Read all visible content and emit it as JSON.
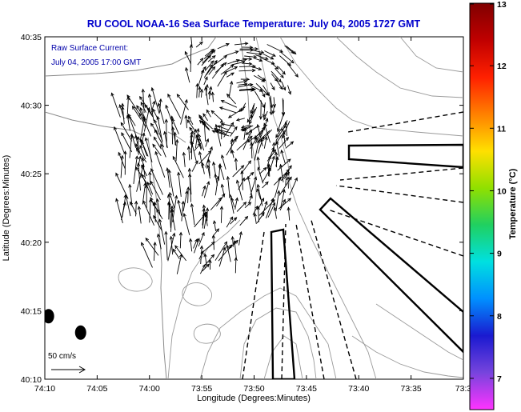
{
  "chart_data": {
    "type": "map",
    "title": "RU COOL  NOAA-16  Sea Surface Temperature:  July 04, 2005 1727 GMT",
    "xlabel": "Longitude (Degrees:Minutes)",
    "ylabel": "Latitude (Degrees:Minutes)",
    "x_ticks": [
      "74:10",
      "74:05",
      "74:00",
      "73:55",
      "73:50",
      "73:45",
      "73:40",
      "73:35",
      "73:3"
    ],
    "y_ticks": [
      "40:35",
      "40:30",
      "40:25",
      "40:20",
      "40:15",
      "40:10"
    ],
    "xlim_min": [
      -600,
      -510
    ],
    "ylim_min": [
      2410,
      2435
    ],
    "annotation_lines": [
      "Raw Surface Current:",
      "July 04, 2005 17:00 GMT"
    ],
    "scale_label": "50 cm/s",
    "colorbar": {
      "label": "Temperature (°C)",
      "range": [
        6.5,
        13
      ],
      "ticks": [
        "13",
        "12",
        "11",
        "10",
        "9",
        "8",
        "7"
      ],
      "tick_values": [
        13,
        12,
        11,
        10,
        9,
        8,
        7
      ],
      "colors": [
        "#ff33ff",
        "#7744dd",
        "#1a1ad0",
        "#0090ff",
        "#00e0e0",
        "#20d060",
        "#90e000",
        "#ffe000",
        "#ff8000",
        "#ff2000",
        "#c00000",
        "#800000"
      ]
    },
    "stations": [
      {
        "name": "station-1",
        "lon_min": -599.2,
        "lat_min": 2414.6
      },
      {
        "name": "station-2",
        "lon_min": -592.3,
        "lat_min": 2413.4
      }
    ],
    "colors": {
      "title": "#0000cc",
      "annotation": "#0000aa",
      "contour": "#9a9a9a"
    }
  }
}
